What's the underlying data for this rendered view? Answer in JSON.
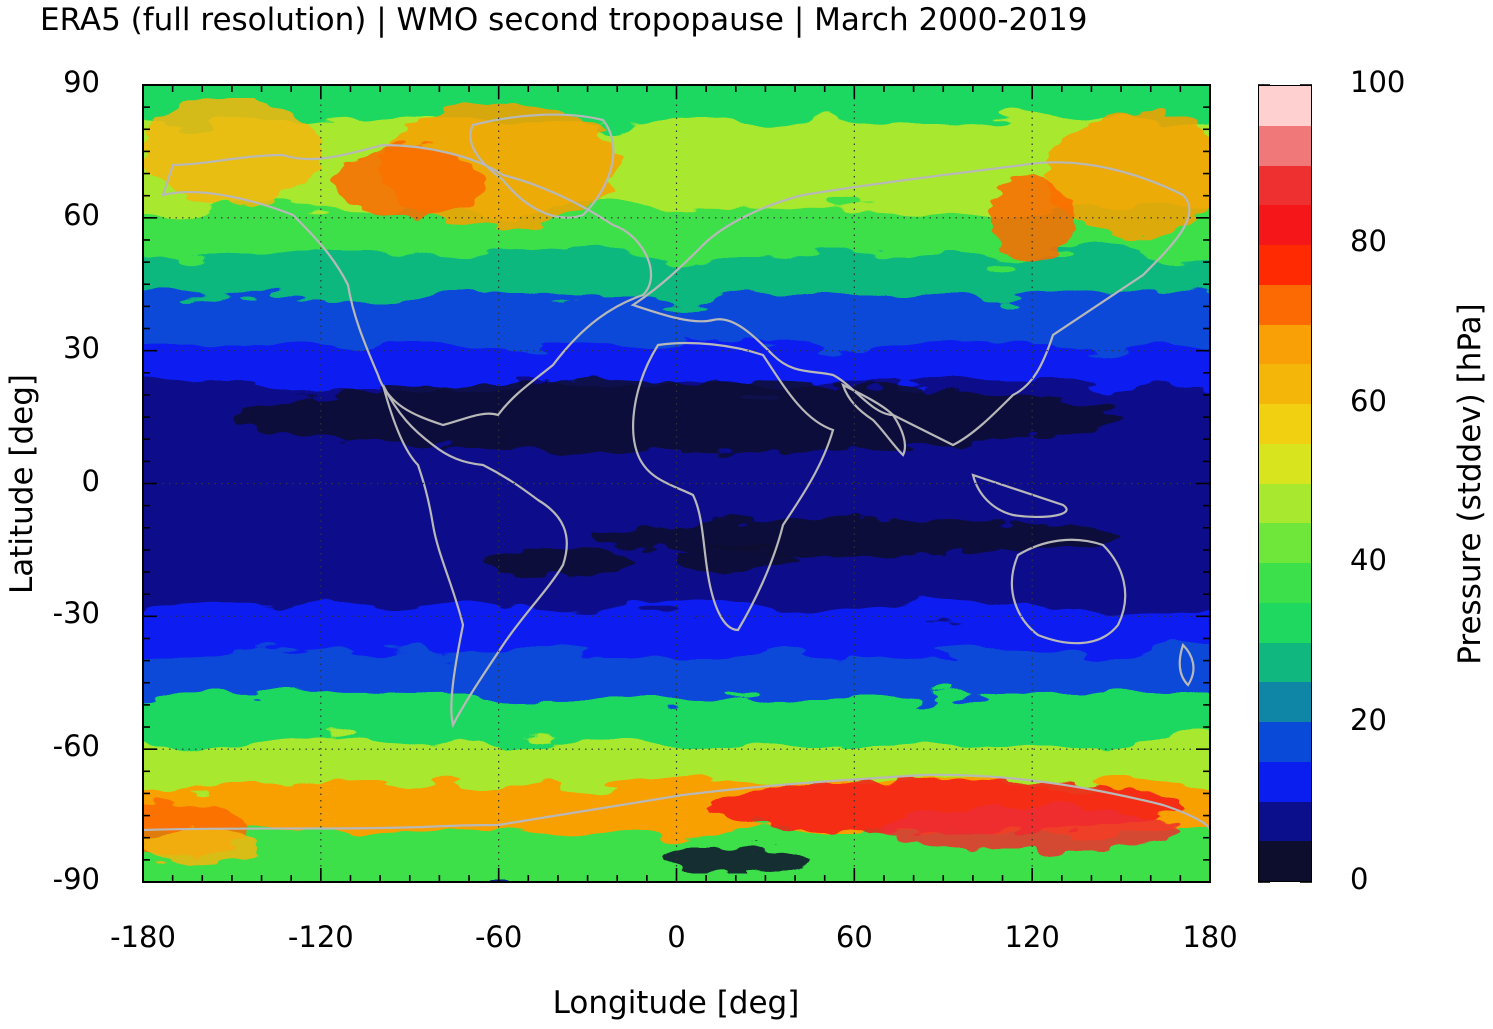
{
  "title": "ERA5 (full resolution) | WMO second tropopause | March 2000-2019",
  "xlabel": "Longitude [deg]",
  "ylabel": "Latitude [deg]",
  "colorbar_label": "Pressure (stddev) [hPa]",
  "x_ticks": [
    "-180",
    "-120",
    "-60",
    "0",
    "60",
    "120",
    "180"
  ],
  "y_ticks": [
    "90",
    "60",
    "30",
    "0",
    "-30",
    "-60",
    "-90"
  ],
  "colorbar_ticks": [
    "100",
    "80",
    "60",
    "40",
    "20",
    "0"
  ],
  "chart_data": {
    "type": "heatmap",
    "title": "ERA5 (full resolution) | WMO second tropopause | March 2000-2019",
    "xlabel": "Longitude [deg]",
    "ylabel": "Latitude [deg]",
    "xlim": [
      -180,
      180
    ],
    "ylim": [
      -90,
      90
    ],
    "x_ticks": [
      -180,
      -120,
      -60,
      0,
      60,
      120,
      180
    ],
    "y_ticks": [
      90,
      60,
      30,
      0,
      -30,
      -60,
      -90
    ],
    "grid": true,
    "colorbar": {
      "label": "Pressure (stddev) [hPa]",
      "range": [
        0,
        100
      ],
      "ticks": [
        0,
        20,
        40,
        60,
        80,
        100
      ],
      "levels": [
        0,
        5,
        10,
        15,
        20,
        25,
        30,
        35,
        40,
        45,
        50,
        55,
        60,
        65,
        70,
        75,
        80,
        85,
        90,
        95,
        100
      ],
      "colors": [
        "#0d0d2e",
        "#0b0f8c",
        "#0a1ef0",
        "#0a4ad8",
        "#0f86a6",
        "#10b87f",
        "#1ed860",
        "#3ce04a",
        "#6ee63a",
        "#a8e82e",
        "#d7e41e",
        "#f0d010",
        "#f5b60a",
        "#f8a006",
        "#fc6a04",
        "#ff2a02",
        "#f5161a",
        "#ee3030",
        "#f07878",
        "#ffd0d0"
      ]
    },
    "zonal_profile": {
      "latitude": [
        85,
        75,
        65,
        55,
        45,
        35,
        25,
        15,
        5,
        -5,
        -15,
        -25,
        -35,
        -45,
        -55,
        -65,
        -75,
        -85
      ],
      "stddev_hPa": [
        32,
        48,
        45,
        38,
        28,
        15,
        10,
        7,
        6,
        7,
        6,
        8,
        12,
        18,
        30,
        45,
        65,
        35
      ]
    },
    "labels": [
      "ERA5 (full resolution)",
      "WMO second tropopause",
      "March 2000-2019"
    ]
  }
}
